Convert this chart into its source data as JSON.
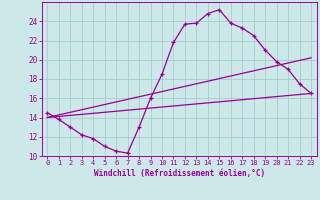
{
  "xlabel": "Windchill (Refroidissement éolien,°C)",
  "bg_color": "#cce8e8",
  "grid_color": "#aacccc",
  "line_color": "#990099",
  "xlim": [
    -0.5,
    23.5
  ],
  "ylim": [
    10,
    26
  ],
  "yticks": [
    10,
    12,
    14,
    16,
    18,
    20,
    22,
    24
  ],
  "xticks": [
    0,
    1,
    2,
    3,
    4,
    5,
    6,
    7,
    8,
    9,
    10,
    11,
    12,
    13,
    14,
    15,
    16,
    17,
    18,
    19,
    20,
    21,
    22,
    23
  ],
  "curve1_x": [
    0,
    1,
    2,
    3,
    4,
    5,
    6,
    7,
    8,
    9,
    10,
    11,
    12,
    13,
    14,
    15,
    16,
    17,
    18,
    19,
    20,
    21,
    22,
    23
  ],
  "curve1_y": [
    14.5,
    13.8,
    13.0,
    12.2,
    11.8,
    11.0,
    10.5,
    10.3,
    13.0,
    16.0,
    18.5,
    21.8,
    23.7,
    23.8,
    24.8,
    25.2,
    23.8,
    23.3,
    22.5,
    21.0,
    19.8,
    19.0,
    17.5,
    16.5
  ],
  "curve2_x": [
    0,
    23
  ],
  "curve2_y": [
    14.0,
    16.5
  ],
  "curve3_x": [
    0,
    23
  ],
  "curve3_y": [
    14.0,
    20.2
  ],
  "xlabel_fontsize": 5.5,
  "tick_fontsize": 5.0,
  "linewidth": 0.9,
  "marker_size": 3.5
}
